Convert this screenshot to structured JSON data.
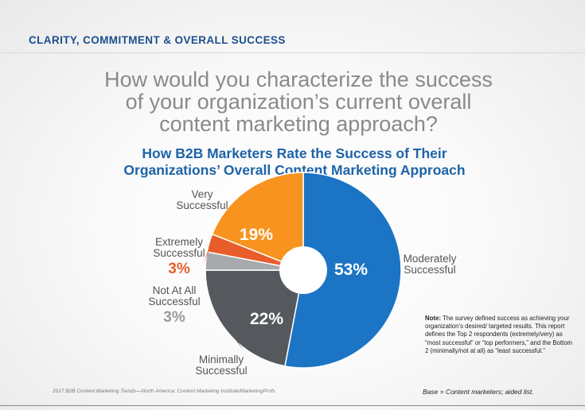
{
  "header": {
    "section_title": "CLARITY, COMMITMENT & OVERALL SUCCESS",
    "question_lines": [
      "How would you characterize the success",
      "of your organization’s current overall",
      "content marketing approach?"
    ]
  },
  "chart_data": {
    "type": "pie",
    "title_lines": [
      "How B2B Marketers Rate the Success of Their",
      "Organizations’ Overall Content Marketing Approach"
    ],
    "slices": [
      {
        "name": "Moderately Successful",
        "label_lines": [
          "Moderately",
          "Successful"
        ],
        "value": 53,
        "display": "53%",
        "color": "#1c74c4"
      },
      {
        "name": "Minimally Successful",
        "label_lines": [
          "Minimally",
          "Successful"
        ],
        "value": 22,
        "display": "22%",
        "color": "#55595e"
      },
      {
        "name": "Not At All Successful",
        "label_lines": [
          "Not At All",
          "Successful"
        ],
        "value": 3,
        "display": "3%",
        "color": "#a7a9ac"
      },
      {
        "name": "Extremely Successful",
        "label_lines": [
          "Extremely",
          "Successful"
        ],
        "value": 3,
        "display": "3%",
        "color": "#e85d2a"
      },
      {
        "name": "Very Successful",
        "label_lines": [
          "Very",
          "Successful"
        ],
        "value": 19,
        "display": "19%",
        "color": "#f7931e"
      }
    ]
  },
  "note": {
    "label": "Note:",
    "text": "The survey defined success as achieving your organization’s desired/ targeted results. This report defines the Top 2 respondents (extremely/very) as “most successful” or “top performers,” and the Bottom 2 (minimally/not at all) as “least successful.”"
  },
  "footer": {
    "source": "2017 B2B Content Marketing Trends—North America: Content Marketing Institute/MarketingProfs",
    "base": "Base = Content marketers; aided list."
  }
}
